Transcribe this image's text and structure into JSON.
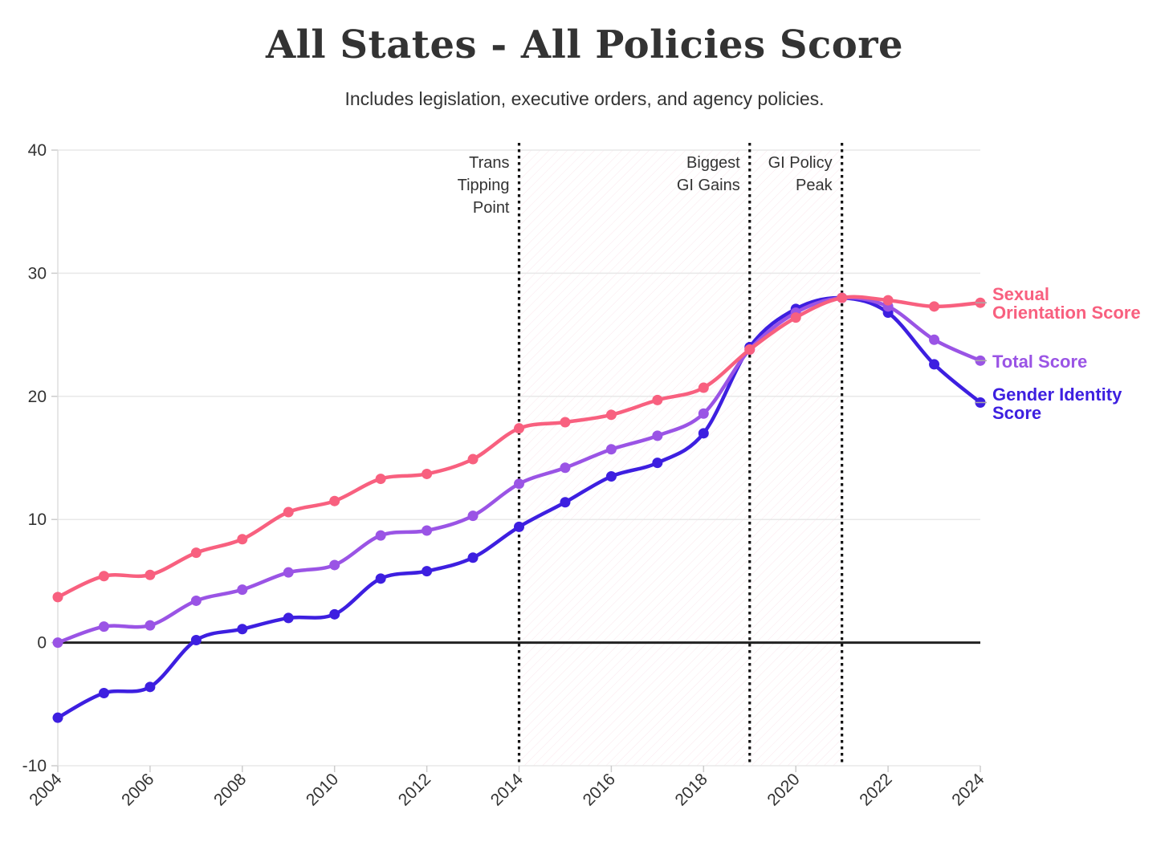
{
  "header": {
    "title": "All States - All Policies Score",
    "subtitle": "Includes legislation, executive orders, and agency policies."
  },
  "chart_data": {
    "type": "line",
    "title": "All States - All Policies Score",
    "subtitle": "Includes legislation, executive orders, and agency policies.",
    "xlabel": "",
    "ylabel": "",
    "x": [
      2004,
      2005,
      2006,
      2007,
      2008,
      2009,
      2010,
      2011,
      2012,
      2013,
      2014,
      2015,
      2016,
      2017,
      2018,
      2019,
      2020,
      2021,
      2022,
      2023,
      2024
    ],
    "xticks": [
      "2004",
      "2006",
      "2008",
      "2010",
      "2012",
      "2014",
      "2016",
      "2018",
      "2020",
      "2022",
      "2024"
    ],
    "yticks": [
      "40",
      "30",
      "20",
      "10",
      "0",
      "-10"
    ],
    "xlim": [
      2004,
      2024
    ],
    "ylim": [
      -10,
      40
    ],
    "grid": true,
    "legend": "direct labels at right end of lines",
    "series": [
      {
        "name": "Sexual Orientation Score",
        "label_lines": [
          "Sexual",
          "Orientation Score"
        ],
        "color": "#f8607f",
        "values": [
          3.7,
          5.4,
          5.5,
          7.3,
          8.4,
          10.6,
          11.5,
          13.3,
          13.7,
          14.9,
          17.4,
          17.9,
          18.5,
          19.7,
          20.7,
          23.8,
          26.4,
          28.0,
          27.8,
          27.3,
          27.6
        ]
      },
      {
        "name": "Total Score",
        "label_lines": [
          "Total Score"
        ],
        "color": "#9a54e5",
        "values": [
          0.0,
          1.3,
          1.4,
          3.4,
          4.3,
          5.7,
          6.3,
          8.7,
          9.1,
          10.3,
          12.9,
          14.2,
          15.7,
          16.8,
          18.6,
          23.8,
          26.8,
          28.0,
          27.3,
          24.6,
          22.9
        ]
      },
      {
        "name": "Gender Identity Score",
        "label_lines": [
          "Gender Identity",
          "Score"
        ],
        "color": "#3d1fe0",
        "values": [
          -6.1,
          -4.1,
          -3.6,
          0.2,
          1.1,
          2.0,
          2.3,
          5.2,
          5.8,
          6.9,
          9.4,
          11.4,
          13.5,
          14.6,
          17.0,
          24.0,
          27.1,
          28.0,
          26.8,
          22.6,
          19.5
        ]
      }
    ],
    "annotations": [
      {
        "x": 2014,
        "label_lines": [
          "Trans",
          "Tipping",
          "Point"
        ]
      },
      {
        "x": 2019,
        "label_lines": [
          "Biggest",
          "GI Gains"
        ]
      },
      {
        "x": 2021,
        "label_lines": [
          "GI Policy",
          "Peak"
        ]
      }
    ],
    "shaded_ranges": [
      [
        2014,
        2021
      ]
    ],
    "colors": {
      "text": "#333333",
      "grid": "#e8e8e8",
      "zero_line": "#222222",
      "shade": "#fde9ef"
    }
  }
}
